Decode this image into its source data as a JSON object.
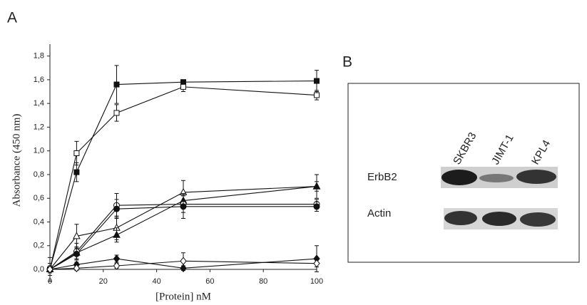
{
  "chart_data": {
    "type": "line",
    "panel_label": "A",
    "y_label": "Absorbance (450 nm)",
    "x_label": "[Protein] nM",
    "x": [
      0,
      10,
      25,
      50,
      100
    ],
    "xlim": [
      0,
      100
    ],
    "xticks": [
      0,
      20,
      40,
      60,
      80,
      100
    ],
    "ylim": [
      0,
      1.9
    ],
    "yticks": [
      {
        "value": 0,
        "label": "0,0"
      },
      {
        "value": 0.2,
        "label": "0,2"
      },
      {
        "value": 0.4,
        "label": "0,4"
      },
      {
        "value": 0.6,
        "label": "0,6"
      },
      {
        "value": 0.8,
        "label": "0,8"
      },
      {
        "value": 1.0,
        "label": "1,0"
      },
      {
        "value": 1.2,
        "label": "1,2"
      },
      {
        "value": 1.4,
        "label": "1,4"
      },
      {
        "value": 1.6,
        "label": "1,6"
      },
      {
        "value": 1.8,
        "label": "1,8"
      }
    ],
    "series": [
      {
        "marker": "square",
        "filled": true,
        "color": "#111",
        "values": [
          0,
          0.82,
          1.56,
          1.58,
          1.59
        ],
        "errors": [
          0.03,
          0.08,
          0.16,
          0.02,
          0.09
        ]
      },
      {
        "marker": "square",
        "filled": false,
        "color": "#111",
        "values": [
          0,
          0.98,
          1.32,
          1.54,
          1.47
        ],
        "errors": [
          0.03,
          0.1,
          0.07,
          0.04,
          0.04
        ]
      },
      {
        "marker": "triangle",
        "filled": false,
        "color": "#111",
        "values": [
          0,
          0.28,
          0.35,
          0.65,
          0.7
        ],
        "errors": [
          0.03,
          0.1,
          0.1,
          0.1,
          0.1
        ]
      },
      {
        "marker": "triangle",
        "filled": true,
        "color": "#111",
        "values": [
          0,
          0.14,
          0.29,
          0.58,
          0.7
        ],
        "errors": [
          0.03,
          0.05,
          0.06,
          0.06,
          0.04
        ]
      },
      {
        "marker": "circle",
        "filled": false,
        "color": "#111",
        "values": [
          0,
          0.15,
          0.54,
          0.55,
          0.55
        ],
        "errors": [
          0.1,
          0.07,
          0.1,
          0.07,
          0.04
        ]
      },
      {
        "marker": "circle",
        "filled": true,
        "color": "#111",
        "values": [
          0,
          0.13,
          0.51,
          0.53,
          0.53
        ],
        "errors": [
          0.05,
          0.05,
          0.08,
          0.1,
          0.04
        ]
      },
      {
        "marker": "diamond",
        "filled": true,
        "color": "#111",
        "values": [
          0,
          0.04,
          0.09,
          0.01,
          0.09
        ],
        "errors": [
          0.02,
          0.02,
          0.03,
          0.02,
          0.11
        ]
      },
      {
        "marker": "diamond",
        "filled": false,
        "color": "#111",
        "values": [
          0,
          0.01,
          0.03,
          0.07,
          0.05
        ],
        "errors": [
          0.02,
          0.02,
          0.02,
          0.07,
          0.03
        ]
      }
    ]
  },
  "blot": {
    "panel_label": "B",
    "lanes": [
      "SKBR3",
      "JIMT-1",
      "KPL4"
    ],
    "rows": [
      "ErbB2",
      "Actin"
    ]
  }
}
